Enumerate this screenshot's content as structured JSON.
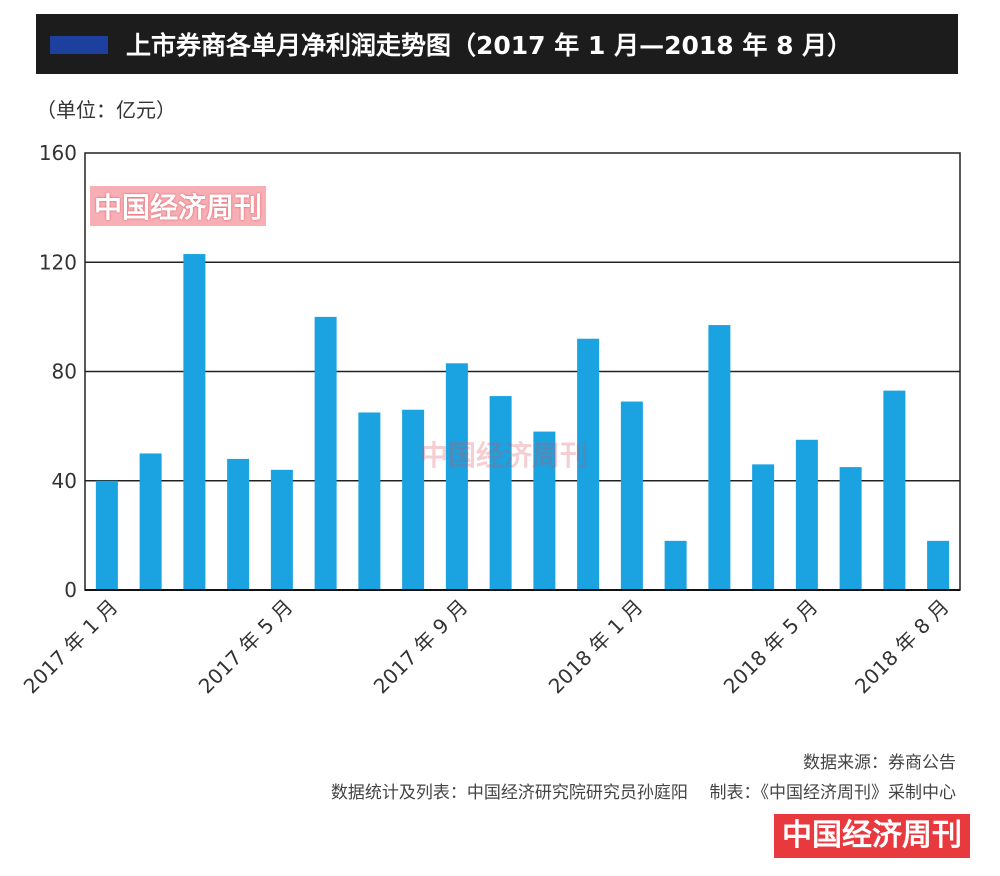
{
  "header": {
    "title": "上市券商各单月净利润走势图（2017 年 1 月—2018 年 8 月）",
    "accent_color": "#1d3f9e",
    "bar_color": "#1c1c1c"
  },
  "unit_label": "（单位：亿元）",
  "watermark": "中国经济周刊",
  "chart_data": {
    "type": "bar",
    "title": "上市券商各单月净利润走势图（2017 年 1 月—2018 年 8 月）",
    "ylabel": "（单位：亿元）",
    "xlabel": "",
    "ylim": [
      0,
      160
    ],
    "yticks": [
      0,
      40,
      80,
      120,
      160
    ],
    "grid": true,
    "bar_color": "#1aa3e0",
    "categories": [
      "2017-01",
      "2017-02",
      "2017-03",
      "2017-04",
      "2017-05",
      "2017-06",
      "2017-07",
      "2017-08",
      "2017-09",
      "2017-10",
      "2017-11",
      "2017-12",
      "2018-01",
      "2018-02",
      "2018-03",
      "2018-04",
      "2018-05",
      "2018-06",
      "2018-07",
      "2018-08"
    ],
    "values": [
      40,
      50,
      123,
      48,
      44,
      100,
      65,
      66,
      83,
      71,
      58,
      92,
      69,
      18,
      97,
      46,
      55,
      45,
      73,
      18
    ],
    "tick_labels": [
      {
        "index": 0,
        "text": "2017 年 1 月"
      },
      {
        "index": 4,
        "text": "2017 年 5 月"
      },
      {
        "index": 8,
        "text": "2017 年 9 月"
      },
      {
        "index": 12,
        "text": "2018 年 1 月"
      },
      {
        "index": 16,
        "text": "2018 年 5 月"
      },
      {
        "index": 19,
        "text": "2018 年 8 月"
      }
    ]
  },
  "footer": {
    "source": "数据来源：券商公告",
    "stats": "数据统计及列表：中国经济研究院研究员孙庭阳",
    "made_by": "制表：《中国经济周刊》采制中心",
    "logo": "中国经济周刊",
    "logo_color": "#e8393f"
  }
}
